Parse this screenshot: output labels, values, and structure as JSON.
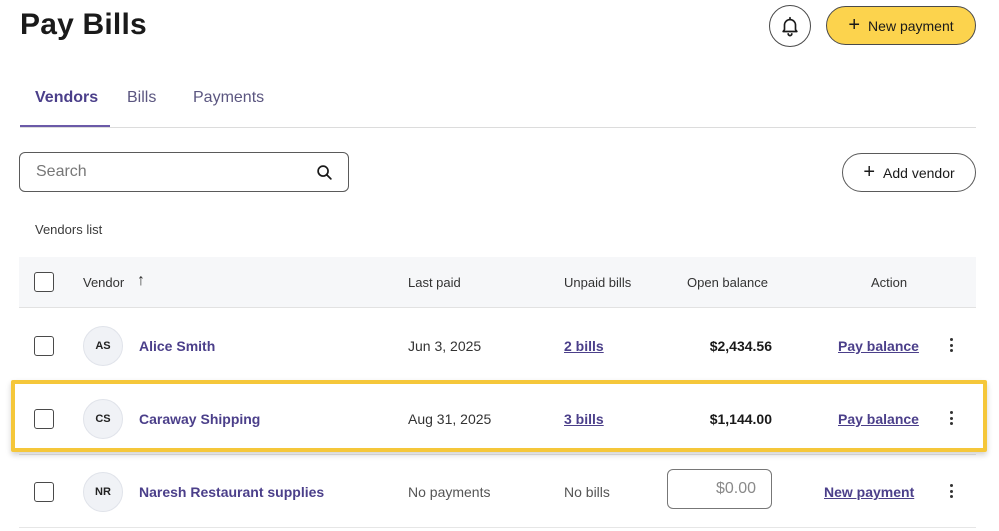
{
  "header": {
    "title": "Pay Bills",
    "new_payment_label": "New payment"
  },
  "tabs": [
    {
      "label": "Vendors",
      "active": true
    },
    {
      "label": "Bills",
      "active": false
    },
    {
      "label": "Payments",
      "active": false
    }
  ],
  "search": {
    "placeholder": "Search",
    "value": ""
  },
  "add_vendor_label": "Add vendor",
  "list_label": "Vendors list",
  "table": {
    "columns": {
      "vendor": "Vendor",
      "sort_indicator": "↑",
      "last_paid": "Last paid",
      "unpaid_bills": "Unpaid bills",
      "open_balance": "Open balance",
      "action": "Action"
    },
    "rows": [
      {
        "initials": "AS",
        "name": "Alice Smith",
        "last_paid": "Jun 3, 2025",
        "unpaid_bills": "2 bills",
        "open_balance": "$2,434.56",
        "action": "Pay balance"
      },
      {
        "initials": "CS",
        "name": "Caraway Shipping",
        "last_paid": "Aug 31, 2025",
        "unpaid_bills": "3 bills",
        "open_balance": "$1,144.00",
        "action": "Pay balance"
      },
      {
        "initials": "NR",
        "name": "Naresh Restaurant supplies",
        "last_paid": "No payments",
        "unpaid_bills": "No bills",
        "open_balance_placeholder": "$0.00",
        "action": "New payment"
      }
    ]
  },
  "colors": {
    "accent": "#4b3f8a",
    "primary_button": "#fcd34d",
    "highlight": "#f5c73a"
  },
  "icons": {
    "bell": "bell-icon",
    "plus": "plus-icon",
    "search": "search-icon",
    "sort": "arrow-up-icon",
    "more": "more-vertical-icon"
  }
}
